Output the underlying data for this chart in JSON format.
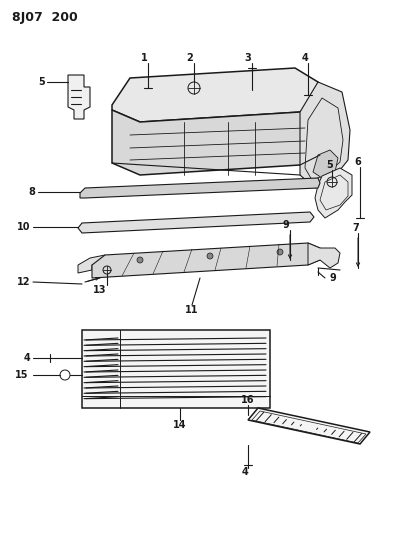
{
  "title": "8J07 200",
  "bg_color": "#ffffff",
  "lc": "#1a1a1a",
  "fs_title": 9,
  "fs_label": 7,
  "figsize": [
    3.93,
    5.33
  ],
  "dpi": 100,
  "xlim": [
    0,
    393
  ],
  "ylim": [
    0,
    533
  ]
}
